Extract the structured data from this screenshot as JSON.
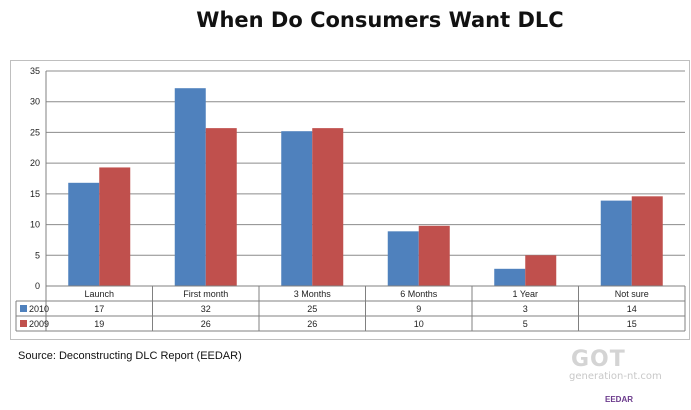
{
  "title": "When Do Consumers Want DLC",
  "source": "Source: Deconstructing DLC Report (EEDAR)",
  "watermark": {
    "got": "GOT",
    "gen": "generation-nt.com",
    "eedar": "EEDAR"
  },
  "colors": {
    "2010": "#4f81bd",
    "2009": "#c0504d",
    "grid": "#8c8c8c",
    "axis": "#808080"
  },
  "chart_data": {
    "type": "bar",
    "title": "When Do Consumers Want DLC",
    "categories": [
      "Launch",
      "First month",
      "3 Months",
      "6 Months",
      "1 Year",
      "Not sure"
    ],
    "series": [
      {
        "name": "2010",
        "values": [
          17,
          32,
          25,
          9,
          3,
          14
        ],
        "color": "#4f81bd"
      },
      {
        "name": "2009",
        "values": [
          19,
          26,
          26,
          10,
          5,
          15
        ],
        "color": "#c0504d"
      }
    ],
    "bar_values": {
      "2010": [
        16.8,
        32.2,
        25.2,
        8.9,
        2.8,
        13.9
      ],
      "2009": [
        19.3,
        25.7,
        25.7,
        9.8,
        5.0,
        14.6
      ]
    },
    "ylim": [
      0,
      35
    ],
    "yticks": [
      0,
      5,
      10,
      15,
      20,
      25,
      30,
      35
    ],
    "grid": true,
    "legend": "data-table"
  }
}
